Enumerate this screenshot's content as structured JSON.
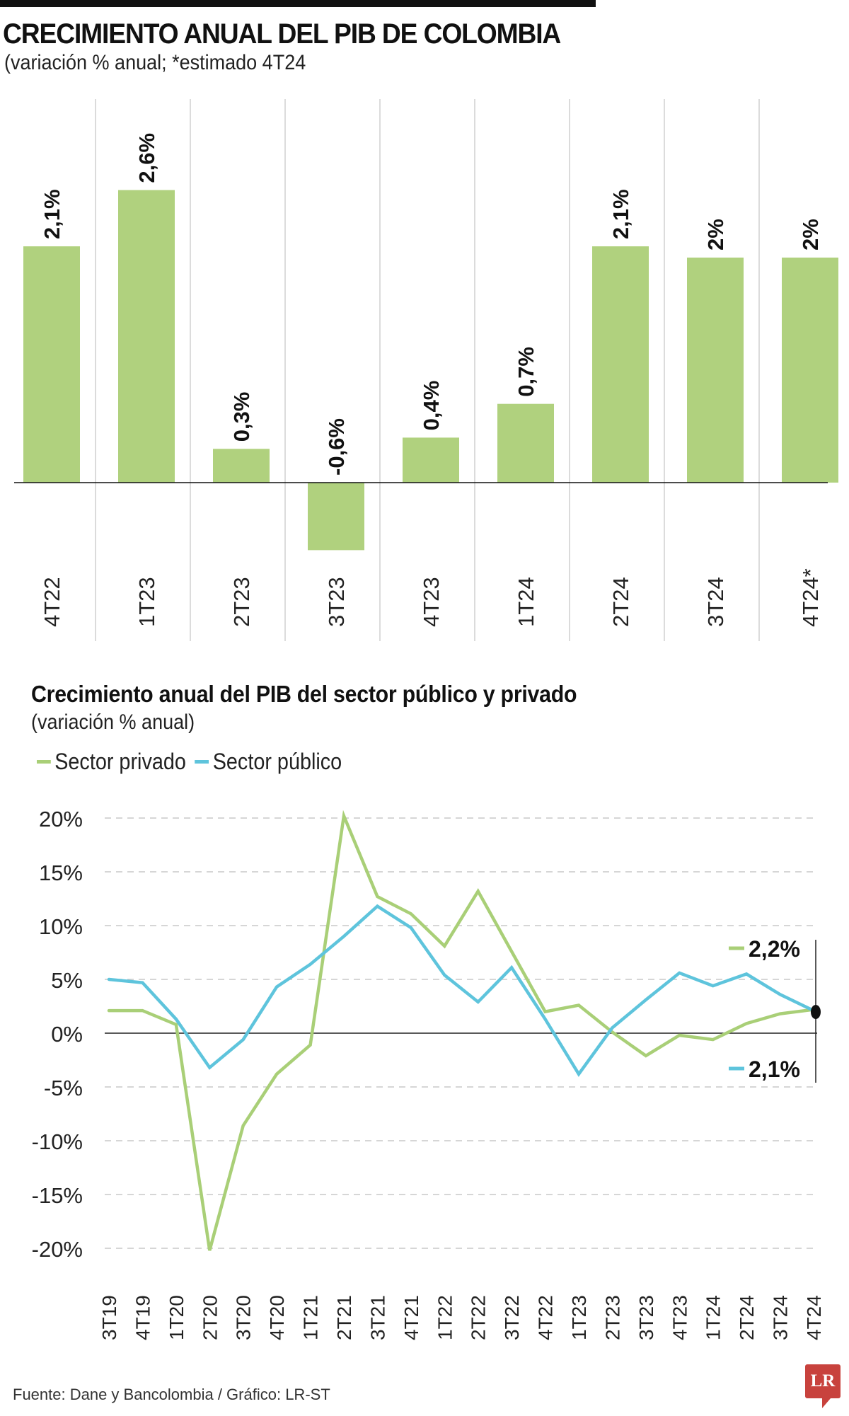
{
  "header": {
    "title": "CRECIMIENTO ANUAL DEL PIB DE COLOMBIA",
    "subtitle": "(variación % anual; *estimado 4T24"
  },
  "colors": {
    "bar": "#b0d17e",
    "private": "#a9cf77",
    "public": "#5ec4dc",
    "axis": "#222222",
    "grid": "#c8c8c8",
    "divider": "#c8c8c8",
    "logo": "#c8423d"
  },
  "chart_data": [
    {
      "type": "bar",
      "title": "CRECIMIENTO ANUAL DEL PIB DE COLOMBIA",
      "subtitle": "(variación % anual; *estimado 4T24",
      "categories": [
        "4T22",
        "1T23",
        "2T23",
        "3T23",
        "4T23",
        "1T24",
        "2T24",
        "3T24",
        "4T24*"
      ],
      "values": [
        2.1,
        2.6,
        0.3,
        -0.6,
        0.4,
        0.7,
        2.1,
        2.0,
        2.0
      ],
      "labels": [
        "2,1%",
        "2,6%",
        "0,3%",
        "-0,6%",
        "0,4%",
        "0,7%",
        "2,1%",
        "2%",
        "2%"
      ],
      "xlabel": "",
      "ylabel": "",
      "ylim": [
        -0.6,
        2.6
      ],
      "grid": false
    },
    {
      "type": "line",
      "title": "Crecimiento  anual del PIB del sector público y privado",
      "subtitle": "(variación % anual)",
      "x": [
        "3T19",
        "4T19",
        "1T20",
        "2T20",
        "3T20",
        "4T20",
        "1T21",
        "2T21",
        "3T21",
        "4T21",
        "1T22",
        "2T22",
        "3T22",
        "4T22",
        "1T23",
        "2T23",
        "3T23",
        "4T23",
        "1T24",
        "2T24",
        "3T24",
        "4T24"
      ],
      "series": [
        {
          "name": "Sector privado",
          "values": [
            2.1,
            2.1,
            0.8,
            -20.2,
            -8.6,
            -3.8,
            -1.1,
            20.2,
            12.7,
            11.1,
            8.1,
            13.2,
            7.6,
            2.0,
            2.6,
            0.1,
            -2.1,
            -0.2,
            -0.6,
            0.9,
            1.8,
            2.2
          ],
          "end_label": "2,2%"
        },
        {
          "name": "Sector público",
          "values": [
            5.0,
            4.7,
            1.3,
            -3.2,
            -0.6,
            4.3,
            6.4,
            9.0,
            11.8,
            9.8,
            5.4,
            2.9,
            6.1,
            1.3,
            -3.8,
            0.5,
            3.1,
            5.6,
            4.4,
            5.5,
            3.6,
            2.1
          ],
          "end_label": "2,1%"
        }
      ],
      "yticks": [
        20,
        15,
        10,
        5,
        0,
        -5,
        -10,
        -15,
        -20
      ],
      "ytick_labels": [
        "20%",
        "15%",
        "10%",
        "5%",
        "0%",
        "-5%",
        "-10%",
        "-15%",
        "-20%"
      ],
      "ylim": [
        -20,
        20
      ],
      "grid": true,
      "legend": "top-left"
    }
  ],
  "bar_chart": {},
  "line_chart": {
    "title": "Crecimiento  anual del PIB del sector público y privado",
    "subtitle": "(variación % anual)",
    "legend": [
      {
        "label": "Sector privado",
        "color": "#a9cf77"
      },
      {
        "label": "Sector público",
        "color": "#5ec4dc"
      }
    ]
  },
  "footer": {
    "source": "Fuente: Dane y Bancolombia / Gráfico: LR-ST",
    "logo": "LR"
  }
}
